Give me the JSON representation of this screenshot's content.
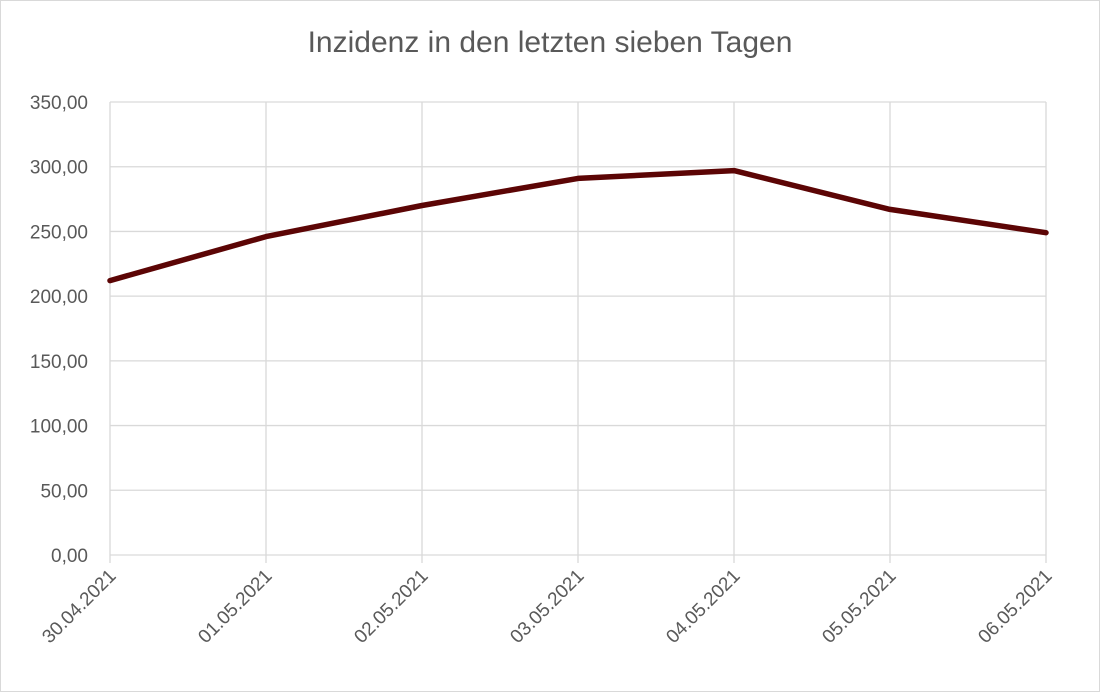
{
  "chart_data": {
    "type": "line",
    "title": "Inzidenz in den letzten sieben Tagen",
    "xlabel": "",
    "ylabel": "",
    "categories": [
      "30.04.2021",
      "01.05.2021",
      "02.05.2021",
      "03.05.2021",
      "04.05.2021",
      "05.05.2021",
      "06.05.2021"
    ],
    "series": [
      {
        "values": [
          212,
          246,
          270,
          291,
          297,
          267,
          249
        ]
      }
    ],
    "ylim": [
      0,
      350
    ],
    "y_ticks": [
      "0,00",
      "50,00",
      "100,00",
      "150,00",
      "200,00",
      "250,00",
      "300,00",
      "350,00"
    ],
    "grid": true,
    "legend": "none",
    "colors": {
      "line": "#5c0505",
      "grid": "#d9d9d9",
      "text": "#595959"
    }
  }
}
